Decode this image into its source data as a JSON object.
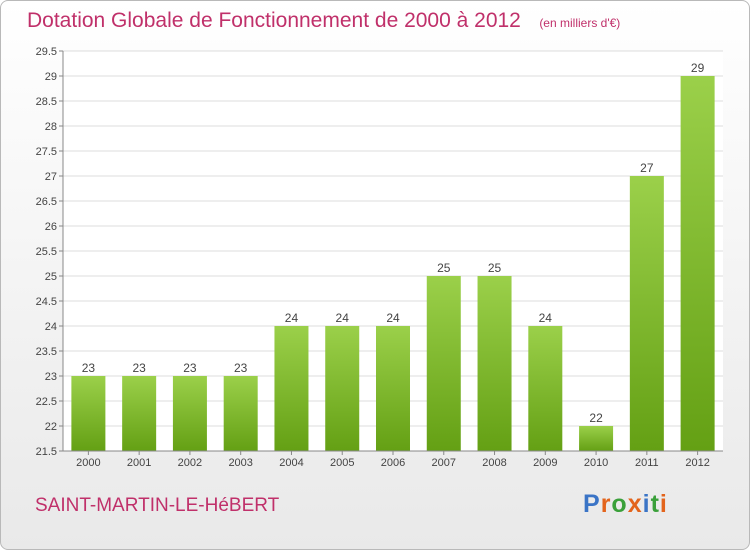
{
  "title": "Dotation Globale de Fonctionnement de 2000 à 2012",
  "unit_note": "(en milliers d'€)",
  "commune": "SAINT-MARTIN-LE-HéBERT",
  "logo": "Proxiti",
  "colors": {
    "title": "#c0306a",
    "bar_light": "#9bd04a",
    "bar_dark": "#64a014",
    "logo_letters": [
      "#3a74c6",
      "#e3641c",
      "#3aa03a",
      "#e3641c",
      "#3a74c6",
      "#3aa03a",
      "#e3641c"
    ]
  },
  "chart_data": {
    "type": "bar",
    "title": "Dotation Globale de Fonctionnement de 2000 à 2012",
    "subtitle": "(en milliers d'€)",
    "categories": [
      "2000",
      "2001",
      "2002",
      "2003",
      "2004",
      "2005",
      "2006",
      "2007",
      "2008",
      "2009",
      "2010",
      "2011",
      "2012"
    ],
    "values": [
      23,
      23,
      23,
      23,
      24,
      24,
      24,
      25,
      25,
      24,
      22,
      27,
      29
    ],
    "ylim": [
      21.5,
      29.5
    ],
    "yticks": [
      "21.5",
      "22",
      "22.5",
      "23",
      "23.5",
      "24",
      "24.5",
      "25",
      "25.5",
      "26",
      "26.5",
      "27",
      "27.5",
      "28",
      "28.5",
      "29",
      "29.5"
    ],
    "grid": true,
    "xlabel": "",
    "ylabel": ""
  }
}
